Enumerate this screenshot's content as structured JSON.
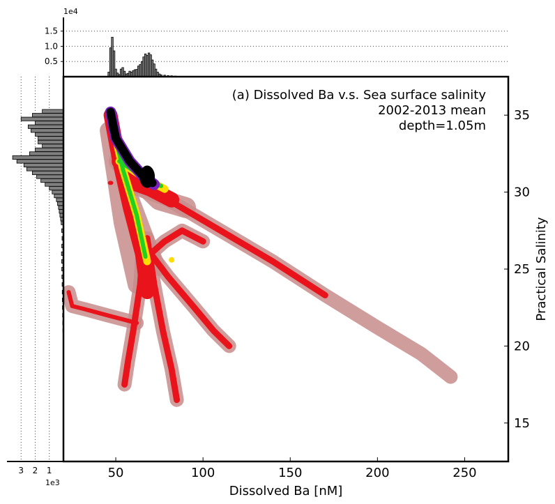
{
  "chart_data": [
    {
      "type": "heatmap",
      "panel": "main",
      "title_lines": [
        "(a) Dissolved Ba v.s. Sea surface salinity",
        "2002-2013 mean",
        "depth=1.05m"
      ],
      "xlabel": "Dissolved Ba [nM]",
      "ylabel": "Practical Salinity",
      "xlim": [
        20,
        275
      ],
      "ylim": [
        12.5,
        37.5
      ],
      "x_ticks": [
        50,
        100,
        150,
        200,
        250
      ],
      "y_ticks": [
        15,
        20,
        25,
        30,
        35
      ],
      "grid": false,
      "colors": {
        "sparse": "#c88c8c",
        "low": "#e8131b",
        "mid": "#ffdd00",
        "high": "#22d022",
        "very_high": "#7a20c0",
        "peak": "#000000"
      },
      "density_features": [
        {
          "name": "main diagonal tail",
          "from": [
            52,
            31
          ],
          "to": [
            242,
            18
          ]
        },
        {
          "name": "left plume",
          "from": [
            23,
            23.5
          ],
          "to": [
            62,
            21.5
          ]
        },
        {
          "name": "lower branch A",
          "from": [
            67,
            25
          ],
          "to": [
            55,
            17.5
          ]
        },
        {
          "name": "lower branch B",
          "from": [
            72,
            24
          ],
          "to": [
            85,
            16.5
          ]
        },
        {
          "name": "lower branch C",
          "from": [
            72,
            24
          ],
          "to": [
            115,
            20
          ]
        },
        {
          "name": "core",
          "from": [
            47,
            35.3
          ],
          "to": [
            70,
            30.5
          ]
        }
      ]
    },
    {
      "type": "bar",
      "panel": "top-marginal",
      "orientation": "vertical",
      "x": [
        46,
        47,
        48,
        49,
        50,
        51,
        52,
        53,
        54,
        55,
        56,
        57,
        58,
        59,
        60,
        61,
        62,
        63,
        64,
        65,
        66,
        67,
        68,
        69,
        70,
        71,
        72,
        73,
        74,
        75,
        76,
        78,
        80,
        82,
        84,
        86,
        88
      ],
      "values": [
        1500,
        9500,
        13000,
        8500,
        2500,
        1200,
        700,
        2500,
        3000,
        1800,
        900,
        1100,
        1800,
        1500,
        2000,
        2300,
        2400,
        3500,
        4000,
        5000,
        6500,
        7500,
        7000,
        7800,
        7200,
        5500,
        4200,
        2500,
        1500,
        900,
        600,
        500,
        350,
        300,
        200,
        120,
        80
      ],
      "y_ticks": [
        "0.5",
        "1.0",
        "1.5"
      ],
      "y_tick_values": [
        5000,
        10000,
        15000
      ],
      "multiplier_label": "1e4",
      "ylim": [
        0,
        19500
      ],
      "grid": "horizontal dotted"
    },
    {
      "type": "bar",
      "panel": "left-marginal",
      "orientation": "horizontal",
      "y": [
        35.25,
        35.0,
        34.75,
        34.5,
        34.25,
        34.0,
        33.75,
        33.5,
        33.25,
        33.0,
        32.75,
        32.5,
        32.25,
        32.0,
        31.75,
        31.5,
        31.25,
        31.0,
        30.75,
        30.5,
        30.25,
        30.0,
        29.75,
        29.5,
        29.25,
        29.0,
        28.75,
        28.5,
        28.25,
        28.0,
        27.5,
        27.0,
        26.5,
        26.0,
        25.5,
        25.0,
        24.5,
        24.0,
        23.5,
        23.0,
        22.5,
        22.0,
        21.5,
        21.0,
        20.5,
        20.0
      ],
      "values": [
        1500,
        2200,
        3000,
        2000,
        2500,
        2300,
        2000,
        1800,
        1800,
        1500,
        2000,
        2400,
        3600,
        3300,
        2800,
        2600,
        2200,
        1900,
        1600,
        1300,
        1000,
        800,
        650,
        500,
        420,
        350,
        300,
        250,
        200,
        160,
        130,
        100,
        120,
        140,
        130,
        120,
        110,
        95,
        85,
        80,
        70,
        60,
        50,
        40,
        30,
        20
      ],
      "x_ticks": [
        "3",
        "2",
        "1"
      ],
      "x_tick_values": [
        3000,
        2000,
        1000
      ],
      "multiplier_label": "1e3",
      "xlim": [
        0,
        4000
      ],
      "grid": "vertical dotted"
    }
  ]
}
